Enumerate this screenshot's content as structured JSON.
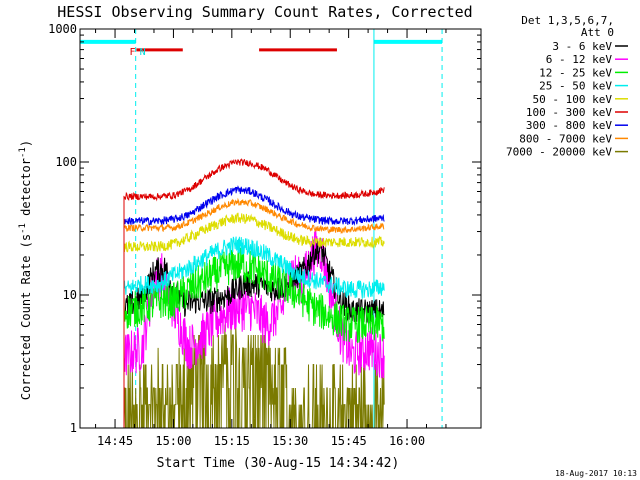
{
  "chart_data": {
    "type": "line",
    "title": "HESSI Observing Summary Count Rates, Corrected",
    "xlabel": "Start Time (30-Aug-15 14:34:42)",
    "ylabel_main": "Corrected Count Rate (s",
    "ylabel_sup1": "-1",
    "ylabel_mid": " detector",
    "ylabel_sup2": "-1",
    "ylabel_end": ")",
    "yscale": "log",
    "ylim": [
      1,
      1000
    ],
    "y_ticks": [
      {
        "v": 1,
        "label": "1"
      },
      {
        "v": 10,
        "label": "10"
      },
      {
        "v": 100,
        "label": "100"
      },
      {
        "v": 1000,
        "label": "1000"
      }
    ],
    "xlim_min": [
      -24,
      79
    ],
    "x_ticks": [
      {
        "m": -15,
        "label": "14:45"
      },
      {
        "m": 0,
        "label": "15:00"
      },
      {
        "m": 15,
        "label": "15:15"
      },
      {
        "m": 30,
        "label": "15:30"
      },
      {
        "m": 45,
        "label": "15:45"
      },
      {
        "m": 60,
        "label": "16:00"
      }
    ],
    "legend_header": [
      "Det 1,3,5,6,7,",
      "Att 0"
    ],
    "legend_placement": "right",
    "timestamp": "18-Aug-2017 10:13",
    "data_start_min": -12.7,
    "data_end_min": 54.2,
    "night_intervals_min": [
      [
        -24,
        -9.7
      ],
      [
        51.5,
        69
      ]
    ],
    "saa_bar_level": 800,
    "markers": [
      {
        "label": "F",
        "m": -10.5,
        "color": "#dd0000"
      },
      {
        "label": "N",
        "m": -7.9,
        "color": "#00dddd"
      }
    ],
    "flare_bars_min": [
      [
        -9.5,
        2.4
      ],
      [
        22,
        42
      ]
    ],
    "series": [
      {
        "name": "3 - 6 keV",
        "color": "#000000",
        "values": [
          [
            -12.5,
            8
          ],
          [
            -8,
            9.5
          ],
          [
            -5,
            15
          ],
          [
            -2,
            16
          ],
          [
            0,
            11
          ],
          [
            3,
            8.5
          ],
          [
            6,
            9
          ],
          [
            10,
            9
          ],
          [
            14,
            10
          ],
          [
            18,
            12
          ],
          [
            22,
            12
          ],
          [
            26,
            11
          ],
          [
            30,
            12
          ],
          [
            34,
            16
          ],
          [
            36,
            21
          ],
          [
            38,
            22
          ],
          [
            40,
            15
          ],
          [
            43,
            9
          ],
          [
            46,
            7.5
          ],
          [
            50,
            7.5
          ],
          [
            54,
            7.5
          ]
        ]
      },
      {
        "name": "6 - 12 keV",
        "color": "#ff00ff",
        "values": [
          [
            -12.5,
            3.5
          ],
          [
            -8,
            4
          ],
          [
            -5,
            13
          ],
          [
            -3,
            14
          ],
          [
            0,
            8
          ],
          [
            4,
            4
          ],
          [
            8,
            5
          ],
          [
            12,
            7
          ],
          [
            16,
            8
          ],
          [
            20,
            8
          ],
          [
            24,
            6
          ],
          [
            28,
            8
          ],
          [
            30,
            16
          ],
          [
            33,
            12
          ],
          [
            36,
            21
          ],
          [
            38,
            22
          ],
          [
            40,
            12
          ],
          [
            43,
            5
          ],
          [
            46,
            3.5
          ],
          [
            50,
            4
          ],
          [
            54,
            3.5
          ]
        ]
      },
      {
        "name": "12 - 25 keV",
        "color": "#00ee00",
        "values": [
          [
            -12.5,
            7.5
          ],
          [
            -8,
            8
          ],
          [
            -4,
            9
          ],
          [
            0,
            9
          ],
          [
            4,
            11
          ],
          [
            8,
            13
          ],
          [
            12,
            15
          ],
          [
            16,
            17
          ],
          [
            20,
            16
          ],
          [
            24,
            14
          ],
          [
            28,
            12
          ],
          [
            32,
            10
          ],
          [
            36,
            8
          ],
          [
            40,
            7
          ],
          [
            45,
            6
          ],
          [
            50,
            6
          ],
          [
            54,
            6
          ]
        ]
      },
      {
        "name": "25 - 50 keV",
        "color": "#00eeee",
        "values": [
          [
            -12.5,
            11
          ],
          [
            -8,
            12
          ],
          [
            -4,
            12
          ],
          [
            0,
            14
          ],
          [
            4,
            16
          ],
          [
            8,
            19
          ],
          [
            12,
            22
          ],
          [
            16,
            24
          ],
          [
            20,
            23
          ],
          [
            24,
            20
          ],
          [
            28,
            17
          ],
          [
            32,
            14
          ],
          [
            36,
            13
          ],
          [
            40,
            12
          ],
          [
            45,
            11
          ],
          [
            50,
            11
          ],
          [
            54,
            11.5
          ]
        ]
      },
      {
        "name": "50 - 100 keV",
        "color": "#dddd00",
        "values": [
          [
            -12.5,
            23
          ],
          [
            -8,
            23
          ],
          [
            -4,
            23
          ],
          [
            0,
            24
          ],
          [
            4,
            27
          ],
          [
            8,
            31
          ],
          [
            12,
            35
          ],
          [
            16,
            38
          ],
          [
            20,
            37
          ],
          [
            24,
            33
          ],
          [
            28,
            29
          ],
          [
            32,
            26
          ],
          [
            36,
            25
          ],
          [
            40,
            25
          ],
          [
            45,
            25
          ],
          [
            50,
            25
          ],
          [
            54,
            25
          ]
        ]
      },
      {
        "name": "100 - 300 keV",
        "color": "#dd0000",
        "values": [
          [
            -12.5,
            55
          ],
          [
            -8,
            55
          ],
          [
            -4,
            55
          ],
          [
            0,
            56
          ],
          [
            4,
            62
          ],
          [
            8,
            75
          ],
          [
            12,
            90
          ],
          [
            16,
            100
          ],
          [
            20,
            98
          ],
          [
            24,
            88
          ],
          [
            28,
            72
          ],
          [
            32,
            62
          ],
          [
            36,
            57
          ],
          [
            40,
            56
          ],
          [
            45,
            56
          ],
          [
            50,
            58
          ],
          [
            54,
            62
          ]
        ]
      },
      {
        "name": "300 - 800 keV",
        "color": "#0000ee",
        "values": [
          [
            -12.5,
            36
          ],
          [
            -8,
            36
          ],
          [
            -4,
            36
          ],
          [
            0,
            37
          ],
          [
            4,
            40
          ],
          [
            8,
            48
          ],
          [
            12,
            56
          ],
          [
            16,
            62
          ],
          [
            20,
            60
          ],
          [
            24,
            52
          ],
          [
            28,
            44
          ],
          [
            32,
            39
          ],
          [
            36,
            37
          ],
          [
            40,
            36
          ],
          [
            45,
            36
          ],
          [
            50,
            37
          ],
          [
            54,
            38
          ]
        ]
      },
      {
        "name": "800 - 7000 keV",
        "color": "#ff8800",
        "values": [
          [
            -12.5,
            32
          ],
          [
            -8,
            32
          ],
          [
            -4,
            32
          ],
          [
            0,
            32
          ],
          [
            4,
            35
          ],
          [
            8,
            40
          ],
          [
            12,
            46
          ],
          [
            16,
            50
          ],
          [
            20,
            49
          ],
          [
            24,
            44
          ],
          [
            28,
            38
          ],
          [
            32,
            34
          ],
          [
            36,
            32
          ],
          [
            40,
            31
          ],
          [
            45,
            31
          ],
          [
            50,
            32
          ],
          [
            54,
            33
          ]
        ]
      },
      {
        "name": "7000 - 20000 keV",
        "color": "#7a7a00",
        "values": [
          [
            -12.5,
            1.6
          ],
          [
            -8,
            1.8
          ],
          [
            -4,
            2
          ],
          [
            0,
            2
          ],
          [
            4,
            3
          ],
          [
            8,
            3.2
          ],
          [
            12,
            4.2
          ],
          [
            16,
            5
          ],
          [
            20,
            4.5
          ],
          [
            24,
            3.2
          ],
          [
            28,
            2.5
          ],
          [
            32,
            1.6
          ],
          [
            36,
            1.6
          ],
          [
            40,
            1.6
          ],
          [
            45,
            1.6
          ],
          [
            50,
            1.5
          ],
          [
            54,
            1.5
          ]
        ]
      }
    ]
  }
}
